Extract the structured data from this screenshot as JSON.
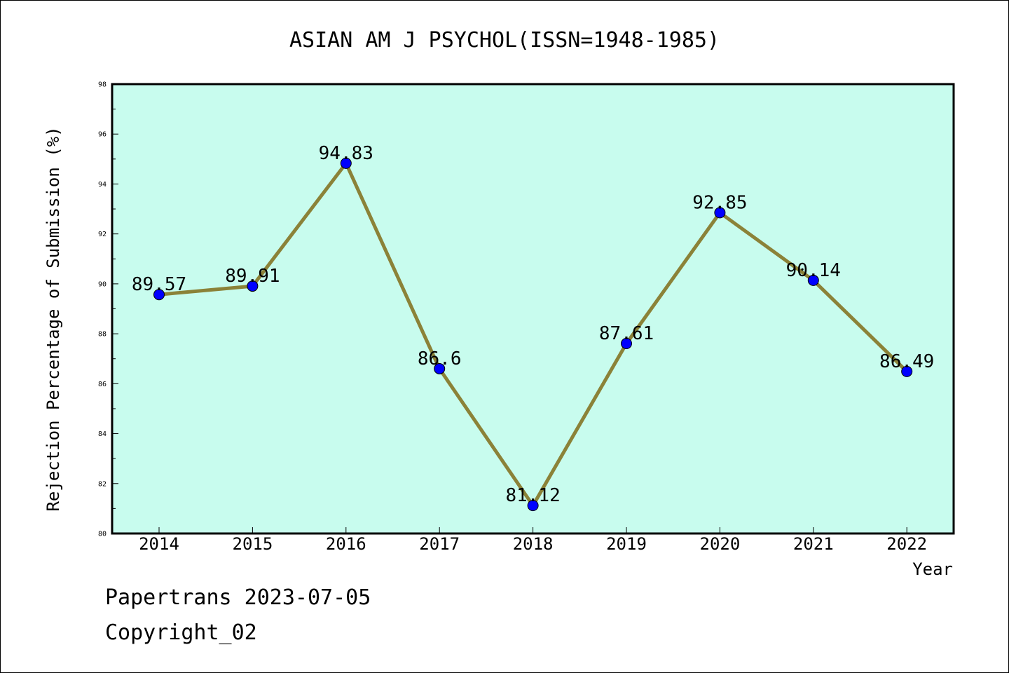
{
  "chart_data": {
    "type": "line",
    "title": "ASIAN AM J PSYCHOL(ISSN=1948-1985)",
    "xlabel": "Year",
    "ylabel": "Rejection Percentage of Submission (%)",
    "categories": [
      "2014",
      "2015",
      "2016",
      "2017",
      "2018",
      "2019",
      "2020",
      "2021",
      "2022"
    ],
    "series": [
      {
        "values": [
          89.57,
          89.91,
          94.83,
          86.6,
          81.12,
          87.61,
          92.85,
          90.14,
          86.49
        ],
        "labels": [
          "89.57",
          "89.91",
          "94.83",
          "86.6",
          "81.12",
          "87.61",
          "92.85",
          "90.14",
          "86.49"
        ]
      }
    ],
    "ylim": [
      80,
      98
    ],
    "yticks": [
      "80",
      "82",
      "84",
      "86",
      "88",
      "90",
      "92",
      "94",
      "96",
      "98"
    ],
    "grid": false,
    "colors": {
      "plot_background": "#c8fcee",
      "line": "#8b8238",
      "marker": "#0000ff"
    }
  },
  "footer": {
    "line1": "Papertrans 2023-07-05",
    "line2": "Copyright_02"
  }
}
